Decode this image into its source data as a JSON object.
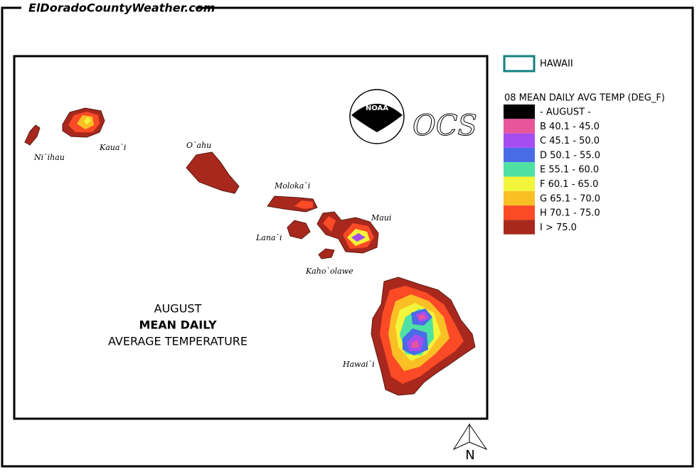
{
  "header": {
    "site": "ElDoradoCountyWeather.com"
  },
  "map": {
    "title": [
      "AUGUST",
      "MEAN DAILY",
      "AVERAGE TEMPERATURE"
    ],
    "islands": [
      "Ni`ihau",
      "Kaua`i",
      "O`ahu",
      "Moloka`i",
      "Lana`i",
      "Maui",
      "Kaho`olawe",
      "Hawai`i"
    ],
    "logos": [
      "NOAA",
      "OCS"
    ],
    "north": "N"
  },
  "legend": {
    "region": "HAWAII",
    "title": "08 MEAN DAILY AVG TEMP (DEG_F)",
    "items": [
      {
        "label": "- AUGUST -",
        "color": "#000000"
      },
      {
        "label": "B 40.1 - 45.0",
        "color": "#e8559a"
      },
      {
        "label": "C 45.1 - 50.0",
        "color": "#a64df0"
      },
      {
        "label": "D 50.1 - 55.0",
        "color": "#4a6be6"
      },
      {
        "label": "E 55.1 - 60.0",
        "color": "#4fe0a3"
      },
      {
        "label": "F 60.1 - 65.0",
        "color": "#f2f53a"
      },
      {
        "label": "G 65.1 - 70.0",
        "color": "#fbbf26"
      },
      {
        "label": "H 70.1 - 75.0",
        "color": "#fb4a26"
      },
      {
        "label": "I > 75.0",
        "color": "#a8281e"
      }
    ]
  }
}
